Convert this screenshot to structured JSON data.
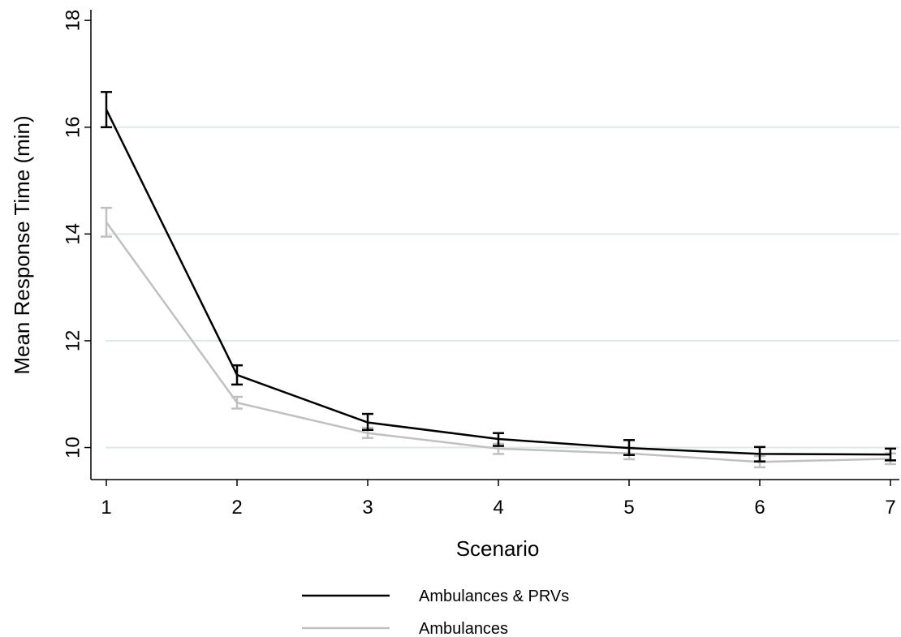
{
  "chart_data": {
    "type": "line",
    "title": "",
    "xlabel": "Scenario",
    "ylabel": "Mean Response Time (min)",
    "x": [
      1,
      2,
      3,
      4,
      5,
      6,
      7
    ],
    "xticks": [
      "1",
      "2",
      "3",
      "4",
      "5",
      "6",
      "7"
    ],
    "yticks": [
      "10",
      "12",
      "14",
      "16",
      "18"
    ],
    "ylim": [
      9.4,
      18.2
    ],
    "grid": true,
    "legend_position": "bottom",
    "series": [
      {
        "name": "Ambulances & PRVs",
        "color": "#000000",
        "values": [
          16.33,
          11.36,
          10.47,
          10.16,
          9.99,
          9.88,
          9.87
        ],
        "error_low": [
          16.0,
          11.18,
          10.33,
          10.03,
          9.86,
          9.74,
          9.76
        ],
        "error_high": [
          16.66,
          11.54,
          10.63,
          10.27,
          10.14,
          10.01,
          9.98
        ]
      },
      {
        "name": "Ambulances",
        "color": "#c0c0c0",
        "values": [
          14.22,
          10.84,
          10.27,
          9.98,
          9.89,
          9.73,
          9.79
        ],
        "error_low": [
          13.95,
          10.73,
          10.18,
          9.88,
          9.78,
          9.63,
          9.69
        ],
        "error_high": [
          14.49,
          10.95,
          10.37,
          10.07,
          10.0,
          9.84,
          9.89
        ]
      }
    ]
  }
}
